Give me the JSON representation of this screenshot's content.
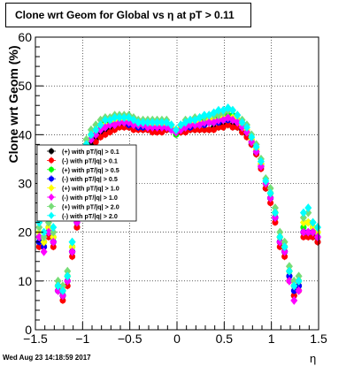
{
  "chart_data": {
    "type": "scatter",
    "title": "Clone wrt Geom for Global vs   η at pT > 0.11",
    "ylabel": "Clone wrt Geom (%)",
    "xlabel": "η",
    "xlim": [
      -1.5,
      1.5
    ],
    "ylim": [
      0,
      60
    ],
    "x_ticks": [
      "−1.5",
      "−1",
      "−0.5",
      "0",
      "0.5",
      "1",
      "1.5"
    ],
    "y_ticks": [
      "0",
      "10",
      "20",
      "30",
      "40",
      "50",
      "60"
    ],
    "grid": true,
    "legend_position": "left-middle",
    "series": [
      {
        "name": "(+) with pT/|q| > 0.1",
        "color": "#000000",
        "marker": "circle",
        "x": [
          -1.46,
          -1.41,
          -1.36,
          -1.31,
          -1.26,
          -1.21,
          -1.16,
          -1.11,
          -1.06,
          -1.01,
          -0.96,
          -0.91,
          -0.86,
          -0.81,
          -0.76,
          -0.71,
          -0.66,
          -0.61,
          -0.56,
          -0.51,
          -0.46,
          -0.41,
          -0.36,
          -0.31,
          -0.26,
          -0.21,
          -0.16,
          -0.11,
          -0.06,
          -0.01,
          0.04,
          0.09,
          0.14,
          0.19,
          0.24,
          0.29,
          0.34,
          0.39,
          0.44,
          0.49,
          0.54,
          0.59,
          0.64,
          0.69,
          0.74,
          0.79,
          0.84,
          0.89,
          0.94,
          0.99,
          1.04,
          1.09,
          1.14,
          1.19,
          1.24,
          1.29,
          1.34,
          1.39,
          1.44,
          1.49
        ],
        "y": [
          18,
          17,
          20,
          18,
          9,
          7,
          10,
          16,
          21,
          28,
          36,
          38,
          39,
          40,
          40.5,
          41,
          41.5,
          42,
          42,
          42,
          41.5,
          41.5,
          41,
          41,
          41,
          41,
          41,
          41,
          41,
          40.5,
          40.5,
          41,
          41,
          41,
          41,
          41,
          41,
          41.5,
          41.5,
          42,
          42,
          42,
          41.5,
          41,
          40,
          38,
          36,
          34,
          29,
          27,
          23,
          18,
          16,
          11,
          7,
          9,
          20,
          20,
          19,
          18
        ]
      },
      {
        "name": "(-) with pT/|q| > 0.1",
        "color": "#ff0000",
        "marker": "circle",
        "x": [
          -1.46,
          -1.41,
          -1.36,
          -1.31,
          -1.26,
          -1.21,
          -1.16,
          -1.11,
          -1.06,
          -1.01,
          -0.96,
          -0.91,
          -0.86,
          -0.81,
          -0.76,
          -0.71,
          -0.66,
          -0.61,
          -0.56,
          -0.51,
          -0.46,
          -0.41,
          -0.36,
          -0.31,
          -0.26,
          -0.21,
          -0.16,
          -0.11,
          -0.06,
          -0.01,
          0.04,
          0.09,
          0.14,
          0.19,
          0.24,
          0.29,
          0.34,
          0.39,
          0.44,
          0.49,
          0.54,
          0.59,
          0.64,
          0.69,
          0.74,
          0.79,
          0.84,
          0.89,
          0.94,
          0.99,
          1.04,
          1.09,
          1.14,
          1.19,
          1.24,
          1.29,
          1.34,
          1.39,
          1.44,
          1.49
        ],
        "y": [
          17,
          17,
          19,
          17,
          8,
          6,
          9,
          15,
          21,
          28,
          35,
          37,
          38.5,
          39.5,
          40,
          40.5,
          41,
          41.5,
          41.5,
          41.5,
          41,
          41,
          41,
          41,
          40.5,
          40.5,
          40.5,
          41,
          41,
          40.5,
          40.5,
          40.5,
          41,
          41,
          41,
          41,
          41,
          41,
          41.5,
          41.5,
          42,
          41.5,
          41.5,
          40.5,
          39.5,
          38,
          36,
          33,
          29,
          26,
          22,
          17,
          15,
          10,
          7,
          8,
          19,
          19,
          19,
          18
        ]
      },
      {
        "name": "(+) with pT/|q| > 0.5",
        "color": "#00ff00",
        "marker": "circle",
        "x": [
          -1.46,
          -1.41,
          -1.36,
          -1.31,
          -1.26,
          -1.21,
          -1.16,
          -1.11,
          -1.06,
          -1.01,
          -0.96,
          -0.91,
          -0.86,
          -0.81,
          -0.76,
          -0.71,
          -0.66,
          -0.61,
          -0.56,
          -0.51,
          -0.46,
          -0.41,
          -0.36,
          -0.31,
          -0.26,
          -0.21,
          -0.16,
          -0.11,
          -0.06,
          -0.01,
          0.04,
          0.09,
          0.14,
          0.19,
          0.24,
          0.29,
          0.34,
          0.39,
          0.44,
          0.49,
          0.54,
          0.59,
          0.64,
          0.69,
          0.74,
          0.79,
          0.84,
          0.89,
          0.94,
          0.99,
          1.04,
          1.09,
          1.14,
          1.19,
          1.24,
          1.29,
          1.34,
          1.39,
          1.44,
          1.49
        ],
        "y": [
          19,
          18,
          21,
          19,
          9,
          8,
          11,
          17,
          23,
          30,
          38,
          40,
          41,
          42,
          42.5,
          43,
          43,
          43,
          43.5,
          43,
          42.5,
          42,
          42,
          42,
          42,
          42,
          42,
          42,
          41,
          40,
          41,
          42,
          42,
          42.5,
          42.5,
          43,
          43,
          43,
          43.5,
          43.5,
          44,
          44,
          43,
          42,
          41,
          39,
          37,
          34,
          30,
          28,
          24,
          19,
          17,
          12,
          9,
          10,
          21,
          22,
          21,
          20
        ]
      },
      {
        "name": "(-) with pT/|q| > 0.5",
        "color": "#0000ff",
        "marker": "circle",
        "x": [
          -1.46,
          -1.41,
          -1.36,
          -1.31,
          -1.26,
          -1.21,
          -1.16,
          -1.11,
          -1.06,
          -1.01,
          -0.96,
          -0.91,
          -0.86,
          -0.81,
          -0.76,
          -0.71,
          -0.66,
          -0.61,
          -0.56,
          -0.51,
          -0.46,
          -0.41,
          -0.36,
          -0.31,
          -0.26,
          -0.21,
          -0.16,
          -0.11,
          -0.06,
          -0.01,
          0.04,
          0.09,
          0.14,
          0.19,
          0.24,
          0.29,
          0.34,
          0.39,
          0.44,
          0.49,
          0.54,
          0.59,
          0.64,
          0.69,
          0.74,
          0.79,
          0.84,
          0.89,
          0.94,
          0.99,
          1.04,
          1.09,
          1.14,
          1.19,
          1.24,
          1.29,
          1.34,
          1.39,
          1.44,
          1.49
        ],
        "y": [
          18,
          17,
          20,
          18,
          8,
          7,
          10,
          16,
          22,
          29,
          37,
          39,
          40,
          41,
          41.5,
          42,
          42,
          42.5,
          42.5,
          42,
          42,
          41.5,
          41.5,
          41.5,
          41.5,
          41.5,
          41.5,
          41.5,
          41,
          40.5,
          41,
          41.5,
          41.5,
          42,
          42,
          42,
          42.5,
          42.5,
          42.5,
          43,
          43,
          43,
          42.5,
          41.5,
          40.5,
          38.5,
          36.5,
          33.5,
          30,
          27,
          23,
          18,
          16,
          11,
          8,
          9,
          20,
          20,
          20,
          19
        ]
      },
      {
        "name": "(+) with pT/|q| > 1.0",
        "color": "#ffff00",
        "marker": "diamond",
        "x": [
          -1.46,
          -1.41,
          -1.36,
          -1.31,
          -1.26,
          -1.21,
          -1.16,
          -1.11,
          -1.06,
          -1.01,
          -0.96,
          -0.91,
          -0.86,
          -0.81,
          -0.76,
          -0.71,
          -0.66,
          -0.61,
          -0.56,
          -0.51,
          -0.46,
          -0.41,
          -0.36,
          -0.31,
          -0.26,
          -0.21,
          -0.16,
          -0.11,
          -0.06,
          -0.01,
          0.04,
          0.09,
          0.14,
          0.19,
          0.24,
          0.29,
          0.34,
          0.39,
          0.44,
          0.49,
          0.54,
          0.59,
          0.64,
          0.69,
          0.74,
          0.79,
          0.84,
          0.89,
          0.94,
          0.99,
          1.04,
          1.09,
          1.14,
          1.19,
          1.24,
          1.29,
          1.34,
          1.39,
          1.44,
          1.49
        ],
        "y": [
          20,
          18,
          21,
          19,
          9,
          8,
          11,
          17,
          23,
          30,
          38,
          40,
          41,
          42,
          42,
          43,
          43,
          43,
          43,
          43,
          42.5,
          42,
          42,
          42,
          42,
          42,
          42,
          42,
          41.5,
          41,
          41.5,
          42,
          42,
          42.5,
          42.5,
          42.5,
          43,
          43,
          43,
          43.5,
          43.5,
          43.5,
          43,
          42,
          41,
          39,
          37,
          34,
          30,
          28,
          24,
          19,
          17,
          12,
          9,
          10,
          22,
          22,
          21,
          20
        ]
      },
      {
        "name": "(-) with pT/|q| > 1.0",
        "color": "#ff00ff",
        "marker": "diamond",
        "x": [
          -1.46,
          -1.41,
          -1.36,
          -1.31,
          -1.26,
          -1.21,
          -1.16,
          -1.11,
          -1.06,
          -1.01,
          -0.96,
          -0.91,
          -0.86,
          -0.81,
          -0.76,
          -0.71,
          -0.66,
          -0.61,
          -0.56,
          -0.51,
          -0.46,
          -0.41,
          -0.36,
          -0.31,
          -0.26,
          -0.21,
          -0.16,
          -0.11,
          -0.06,
          -0.01,
          0.04,
          0.09,
          0.14,
          0.19,
          0.24,
          0.29,
          0.34,
          0.39,
          0.44,
          0.49,
          0.54,
          0.59,
          0.64,
          0.69,
          0.74,
          0.79,
          0.84,
          0.89,
          0.94,
          0.99,
          1.04,
          1.09,
          1.14,
          1.19,
          1.24,
          1.29,
          1.34,
          1.39,
          1.44,
          1.49
        ],
        "y": [
          19,
          16,
          20,
          18,
          8,
          7,
          10,
          16,
          22,
          29,
          37,
          39,
          40,
          41,
          41.5,
          42,
          42,
          42.5,
          42.5,
          42.5,
          42,
          42,
          42,
          41.5,
          41.5,
          41.5,
          41.5,
          41.5,
          41,
          40.5,
          41,
          41.5,
          42,
          42,
          42,
          42.5,
          42.5,
          42.5,
          43,
          43,
          43.5,
          43,
          42.5,
          41.5,
          40.5,
          38.5,
          36.5,
          33.5,
          30,
          27,
          23,
          18,
          16,
          10,
          6,
          8,
          20,
          20,
          20,
          19
        ]
      },
      {
        "name": "(+) with pT/|q| > 2.0",
        "color": "#77dd77",
        "marker": "diamond",
        "x": [
          -1.46,
          -1.41,
          -1.36,
          -1.31,
          -1.26,
          -1.21,
          -1.16,
          -1.11,
          -1.06,
          -1.01,
          -0.96,
          -0.91,
          -0.86,
          -0.81,
          -0.76,
          -0.71,
          -0.66,
          -0.61,
          -0.56,
          -0.51,
          -0.46,
          -0.41,
          -0.36,
          -0.31,
          -0.26,
          -0.21,
          -0.16,
          -0.11,
          -0.06,
          -0.01,
          0.04,
          0.09,
          0.14,
          0.19,
          0.24,
          0.29,
          0.34,
          0.39,
          0.44,
          0.49,
          0.54,
          0.59,
          0.64,
          0.69,
          0.74,
          0.79,
          0.84,
          0.89,
          0.94,
          0.99,
          1.04,
          1.09,
          1.14,
          1.19,
          1.24,
          1.29,
          1.34,
          1.39,
          1.44,
          1.49
        ],
        "y": [
          21,
          19,
          22,
          20,
          10,
          9,
          12,
          18,
          24,
          31,
          39,
          41,
          42,
          43,
          43.5,
          43.5,
          44,
          44,
          44,
          44,
          43.5,
          43,
          43,
          43,
          43,
          43,
          43,
          43,
          42,
          41,
          42,
          43,
          43,
          43.5,
          43.5,
          43.5,
          44,
          44,
          44,
          44.5,
          45,
          45,
          44,
          43,
          42,
          40,
          38,
          35,
          31,
          29,
          25,
          20,
          18,
          13,
          10,
          11,
          23,
          24,
          22,
          21
        ]
      },
      {
        "name": "(-) with pT/|q| > 2.0",
        "color": "#00ffff",
        "marker": "diamond",
        "x": [
          -1.46,
          -1.41,
          -1.36,
          -1.31,
          -1.26,
          -1.21,
          -1.16,
          -1.11,
          -1.06,
          -1.01,
          -0.96,
          -0.91,
          -0.86,
          -0.81,
          -0.76,
          -0.71,
          -0.66,
          -0.61,
          -0.56,
          -0.51,
          -0.46,
          -0.41,
          -0.36,
          -0.31,
          -0.26,
          -0.21,
          -0.16,
          -0.11,
          -0.06,
          -0.01,
          0.04,
          0.09,
          0.14,
          0.19,
          0.24,
          0.29,
          0.34,
          0.39,
          0.44,
          0.49,
          0.54,
          0.59,
          0.64,
          0.69,
          0.74,
          0.79,
          0.84,
          0.89,
          0.94,
          0.99,
          1.04,
          1.09,
          1.14,
          1.19,
          1.24,
          1.29,
          1.34,
          1.39,
          1.44,
          1.49
        ],
        "y": [
          22,
          20,
          23,
          21,
          9,
          8,
          11,
          18,
          24,
          31,
          38,
          40,
          41,
          42,
          43,
          43,
          43.5,
          43.5,
          43.5,
          43.5,
          43,
          42.5,
          42.5,
          42.5,
          42.5,
          42.5,
          42.5,
          42.5,
          42,
          41,
          42,
          42.5,
          43,
          43,
          43.5,
          44,
          44,
          44.5,
          45,
          45,
          45.5,
          45,
          44,
          42.5,
          41.5,
          39.5,
          37.5,
          34.5,
          30.5,
          28,
          24,
          19,
          17,
          12,
          9,
          10,
          24,
          25,
          22,
          21
        ]
      }
    ]
  },
  "footer": {
    "date": "Wed Aug 23 14:18:59 2017"
  }
}
